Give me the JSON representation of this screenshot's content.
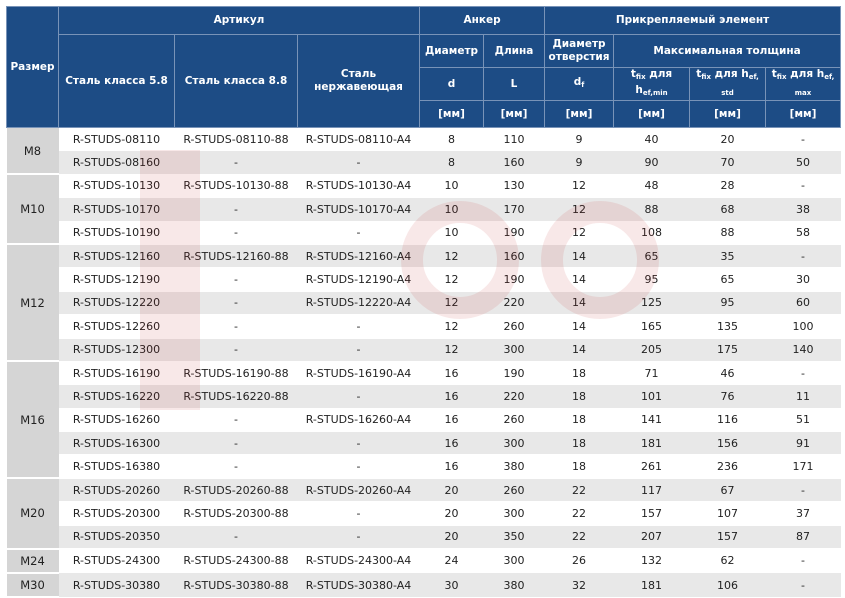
{
  "header": {
    "size": "Размер",
    "article": "Артикул",
    "anchor": "Анкер",
    "attached": "Прикрепляемый элемент",
    "steel58": "Сталь класса 5.8",
    "steel88": "Сталь класса 8.8",
    "stainless": "Сталь нержавеющая",
    "diameter": "Диаметр",
    "length": "Длина",
    "hole_diameter": "Диаметр отверстия",
    "max_thickness": "Максимальная толщина",
    "d": "d",
    "L": "L",
    "df": "d",
    "df_sub": "f",
    "t": "t",
    "fix": "fix",
    "for_h": " для h",
    "sub_min": "ef,min",
    "sub_std": "ef, std",
    "sub_max": "ef, max",
    "unit": "[мм]"
  },
  "watermark": {
    "brand": "Krepezh",
    "color": "#c62828"
  },
  "groups": [
    {
      "size": "M8",
      "rows": [
        [
          "R-STUDS-08110",
          "R-STUDS-08110-88",
          "R-STUDS-08110-A4",
          "8",
          "110",
          "9",
          "40",
          "20",
          "-"
        ],
        [
          "R-STUDS-08160",
          "-",
          "-",
          "8",
          "160",
          "9",
          "90",
          "70",
          "50"
        ]
      ]
    },
    {
      "size": "M10",
      "rows": [
        [
          "R-STUDS-10130",
          "R-STUDS-10130-88",
          "R-STUDS-10130-A4",
          "10",
          "130",
          "12",
          "48",
          "28",
          "-"
        ],
        [
          "R-STUDS-10170",
          "-",
          "R-STUDS-10170-A4",
          "10",
          "170",
          "12",
          "88",
          "68",
          "38"
        ],
        [
          "R-STUDS-10190",
          "-",
          "-",
          "10",
          "190",
          "12",
          "108",
          "88",
          "58"
        ]
      ]
    },
    {
      "size": "M12",
      "rows": [
        [
          "R-STUDS-12160",
          "R-STUDS-12160-88",
          "R-STUDS-12160-A4",
          "12",
          "160",
          "14",
          "65",
          "35",
          "-"
        ],
        [
          "R-STUDS-12190",
          "-",
          "R-STUDS-12190-A4",
          "12",
          "190",
          "14",
          "95",
          "65",
          "30"
        ],
        [
          "R-STUDS-12220",
          "-",
          "R-STUDS-12220-A4",
          "12",
          "220",
          "14",
          "125",
          "95",
          "60"
        ],
        [
          "R-STUDS-12260",
          "-",
          "-",
          "12",
          "260",
          "14",
          "165",
          "135",
          "100"
        ],
        [
          "R-STUDS-12300",
          "-",
          "-",
          "12",
          "300",
          "14",
          "205",
          "175",
          "140"
        ]
      ]
    },
    {
      "size": "M16",
      "rows": [
        [
          "R-STUDS-16190",
          "R-STUDS-16190-88",
          "R-STUDS-16190-A4",
          "16",
          "190",
          "18",
          "71",
          "46",
          "-"
        ],
        [
          "R-STUDS-16220",
          "R-STUDS-16220-88",
          "-",
          "16",
          "220",
          "18",
          "101",
          "76",
          "11"
        ],
        [
          "R-STUDS-16260",
          "-",
          "R-STUDS-16260-A4",
          "16",
          "260",
          "18",
          "141",
          "116",
          "51"
        ],
        [
          "R-STUDS-16300",
          "-",
          "-",
          "16",
          "300",
          "18",
          "181",
          "156",
          "91"
        ],
        [
          "R-STUDS-16380",
          "-",
          "-",
          "16",
          "380",
          "18",
          "261",
          "236",
          "171"
        ]
      ]
    },
    {
      "size": "M20",
      "rows": [
        [
          "R-STUDS-20260",
          "R-STUDS-20260-88",
          "R-STUDS-20260-A4",
          "20",
          "260",
          "22",
          "117",
          "67",
          "-"
        ],
        [
          "R-STUDS-20300",
          "R-STUDS-20300-88",
          "-",
          "20",
          "300",
          "22",
          "157",
          "107",
          "37"
        ],
        [
          "R-STUDS-20350",
          "-",
          "-",
          "20",
          "350",
          "22",
          "207",
          "157",
          "87"
        ]
      ]
    },
    {
      "size": "M24",
      "rows": [
        [
          "R-STUDS-24300",
          "R-STUDS-24300-88",
          "R-STUDS-24300-A4",
          "24",
          "300",
          "26",
          "132",
          "62",
          "-"
        ]
      ]
    },
    {
      "size": "M30",
      "rows": [
        [
          "R-STUDS-30380",
          "R-STUDS-30380-88",
          "R-STUDS-30380-A4",
          "30",
          "380",
          "32",
          "181",
          "106",
          "-"
        ]
      ]
    }
  ]
}
